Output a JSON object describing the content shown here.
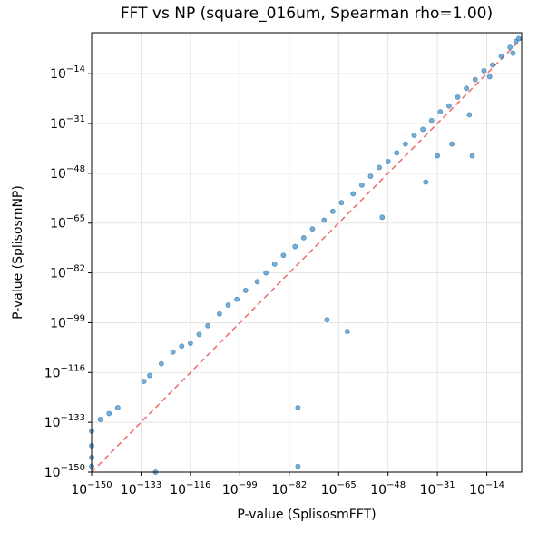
{
  "chart_data": {
    "type": "scatter",
    "title": "FFT vs NP (square_016um, Spearman rho=1.00)",
    "x_label": "P-value (SplisosmFFT)",
    "y_label": "P-value (SplisosmNP)",
    "log_x": true,
    "log_y": true,
    "grid": true,
    "color": "#1f77b4",
    "reference_color": "#f07070",
    "xlim": [
      1e-150,
      0.01
    ],
    "ylim": [
      1e-150,
      1.0
    ],
    "xticks": [
      {
        "value": 1e-150,
        "label": "10−150"
      },
      {
        "value": 1e-133,
        "label": "10−133"
      },
      {
        "value": 1e-116,
        "label": "10−116"
      },
      {
        "value": 1e-99,
        "label": "10−99"
      },
      {
        "value": 1e-82,
        "label": "10−82"
      },
      {
        "value": 1e-65,
        "label": "10−65"
      },
      {
        "value": 1e-48,
        "label": "10−48"
      },
      {
        "value": 1e-31,
        "label": "10−31"
      },
      {
        "value": 1e-14,
        "label": "10−14"
      }
    ],
    "yticks": [
      {
        "value": 1e-150,
        "label": "10−150"
      },
      {
        "value": 1e-133,
        "label": "10−133"
      },
      {
        "value": 1e-116,
        "label": "10−116"
      },
      {
        "value": 1e-99,
        "label": "10−99"
      },
      {
        "value": 1e-82,
        "label": "10−82"
      },
      {
        "value": 1e-65,
        "label": "10−65"
      },
      {
        "value": 1e-48,
        "label": "10−48"
      },
      {
        "value": 1e-31,
        "label": "10−31"
      },
      {
        "value": 1e-14,
        "label": "10−14"
      }
    ],
    "x": [
      1e-150,
      1e-150,
      1e-150,
      1e-150,
      1e-147,
      1e-144,
      1e-141,
      1e-132,
      1e-130,
      1e-126,
      1e-122,
      1e-119,
      1e-116,
      1e-113,
      1e-110,
      1e-106,
      1e-103,
      1e-100,
      1e-97,
      1e-93,
      1e-90,
      1e-87,
      1e-84,
      1e-80,
      1e-77,
      1e-74,
      1e-70,
      1e-67,
      1e-64,
      1e-60,
      1e-57,
      1e-54,
      1e-51,
      1e-48,
      1e-45,
      1e-42,
      1e-39,
      1e-36,
      1e-33,
      1e-30,
      1e-27,
      1e-24,
      1e-21,
      1e-18,
      1e-15,
      1e-12,
      1e-09,
      1e-06,
      0.0001,
      0.001,
      1e-79,
      1e-79,
      1e-128,
      1e-69,
      1e-62,
      1e-50,
      1e-35,
      1e-31,
      1e-26,
      1e-19,
      1e-20,
      1e-13,
      1e-05
    ],
    "values": [
      1e-136,
      1e-141,
      1e-145,
      1e-148,
      1e-132,
      1e-130,
      1e-128,
      1e-119,
      1e-117,
      1e-113,
      1e-109,
      1e-107,
      1e-106,
      1e-103,
      1e-100,
      1e-96,
      1e-93,
      1e-91,
      1e-88,
      1e-85,
      1e-82,
      1e-79,
      1e-76,
      1e-73,
      1e-70,
      1e-67,
      1e-64,
      1e-61,
      1e-58,
      1e-55,
      1e-52,
      1e-49,
      1e-46,
      1e-44,
      1e-41,
      1e-38,
      1e-35,
      1e-33,
      1e-30,
      1e-27,
      1e-25,
      1e-22,
      1e-19,
      1e-16,
      1e-13,
      1e-11,
      1e-08,
      1e-05,
      0.001,
      0.01,
      1e-128,
      1e-148,
      1e-150,
      1e-98,
      1e-102,
      1e-63,
      1e-51,
      1e-42,
      1e-38,
      1e-42,
      1e-28,
      1e-15,
      1e-07
    ]
  }
}
